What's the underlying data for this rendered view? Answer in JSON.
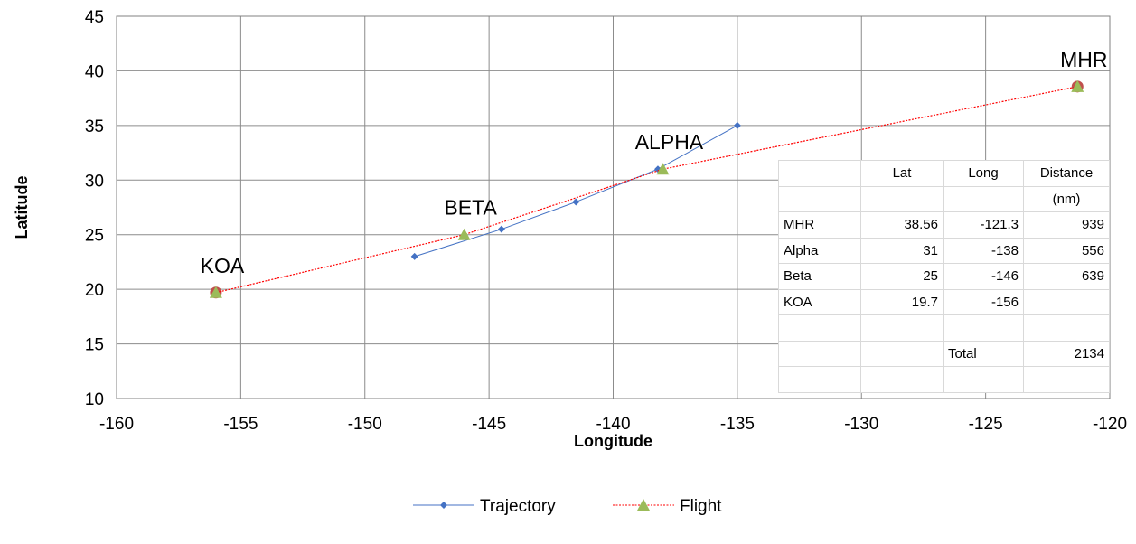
{
  "chart_data": {
    "type": "scatter",
    "xlabel": "Longitude",
    "ylabel": "Latitude",
    "xlim": [
      -160,
      -120
    ],
    "ylim": [
      10,
      45
    ],
    "xticks": [
      -160,
      -155,
      -150,
      -145,
      -140,
      -135,
      -130,
      -125,
      -120
    ],
    "yticks": [
      10,
      15,
      20,
      25,
      30,
      35,
      40,
      45
    ],
    "grid": true,
    "legend_position": "bottom",
    "series": [
      {
        "name": "Trajectory",
        "color": "#4472c4",
        "marker": "diamond",
        "line": "solid",
        "points": [
          [
            -148,
            23
          ],
          [
            -144.5,
            25.5
          ],
          [
            -141.5,
            28
          ],
          [
            -138.2,
            31
          ],
          [
            -135,
            35
          ]
        ]
      },
      {
        "name": "Flight",
        "color": "#ff0000",
        "marker": "triangle",
        "marker_color": "#9bbb59",
        "line": "dotted",
        "points": [
          [
            -156,
            19.7
          ],
          [
            -146,
            25
          ],
          [
            -138,
            31
          ],
          [
            -121.3,
            38.56
          ]
        ]
      }
    ],
    "circle_markers": {
      "color": "#c0504d",
      "points": [
        [
          -156,
          19.7
        ],
        [
          -121.3,
          38.56
        ]
      ]
    },
    "annotations": [
      {
        "text": "KOA",
        "x": -156,
        "y": 19.7
      },
      {
        "text": "BETA",
        "x": -146,
        "y": 25
      },
      {
        "text": "ALPHA",
        "x": -138,
        "y": 31
      },
      {
        "text": "MHR",
        "x": -121.3,
        "y": 38.56
      }
    ]
  },
  "data_table": {
    "header": [
      "",
      "Lat",
      "Long",
      "Distance"
    ],
    "header_unit": [
      "",
      "",
      "",
      "(nm)"
    ],
    "rows": [
      [
        "MHR",
        "38.56",
        "-121.3",
        "939"
      ],
      [
        "Alpha",
        "31",
        "-138",
        "556"
      ],
      [
        "Beta",
        "25",
        "-146",
        "639"
      ],
      [
        "KOA",
        "19.7",
        "-156",
        ""
      ],
      [
        "",
        "",
        "",
        ""
      ],
      [
        "",
        "",
        "Total",
        "2134"
      ],
      [
        "",
        "",
        "",
        ""
      ]
    ]
  }
}
